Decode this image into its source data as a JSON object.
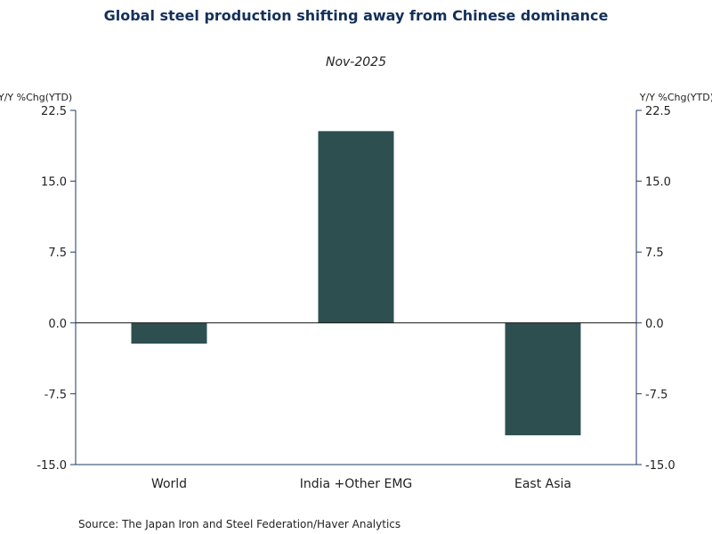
{
  "chart_data": {
    "type": "bar",
    "title": "Global steel production shifting away from Chinese dominance",
    "subtitle": "Nov-2025",
    "ylabel_left": "Y/Y %Chg(YTD)",
    "ylabel_right": "Y/Y %Chg(YTD)",
    "categories": [
      "World",
      "India +Other EMG",
      "East Asia"
    ],
    "series": [
      {
        "name": "Y/Y %Chg(YTD)",
        "values": [
          -2.2,
          20.3,
          -11.9
        ],
        "color": "#2e4f4f"
      }
    ],
    "ylim": [
      -15.0,
      22.5
    ],
    "yticks": [
      "22.5",
      "15.0",
      "7.5",
      "0.0",
      "-7.5",
      "-15.0"
    ],
    "ytick_values": [
      22.5,
      15.0,
      7.5,
      0.0,
      -7.5,
      -15.0
    ],
    "source": "Source:  The Japan Iron and Steel Federation/Haver Analytics",
    "axis_color": "#1f3864",
    "grid": false
  }
}
